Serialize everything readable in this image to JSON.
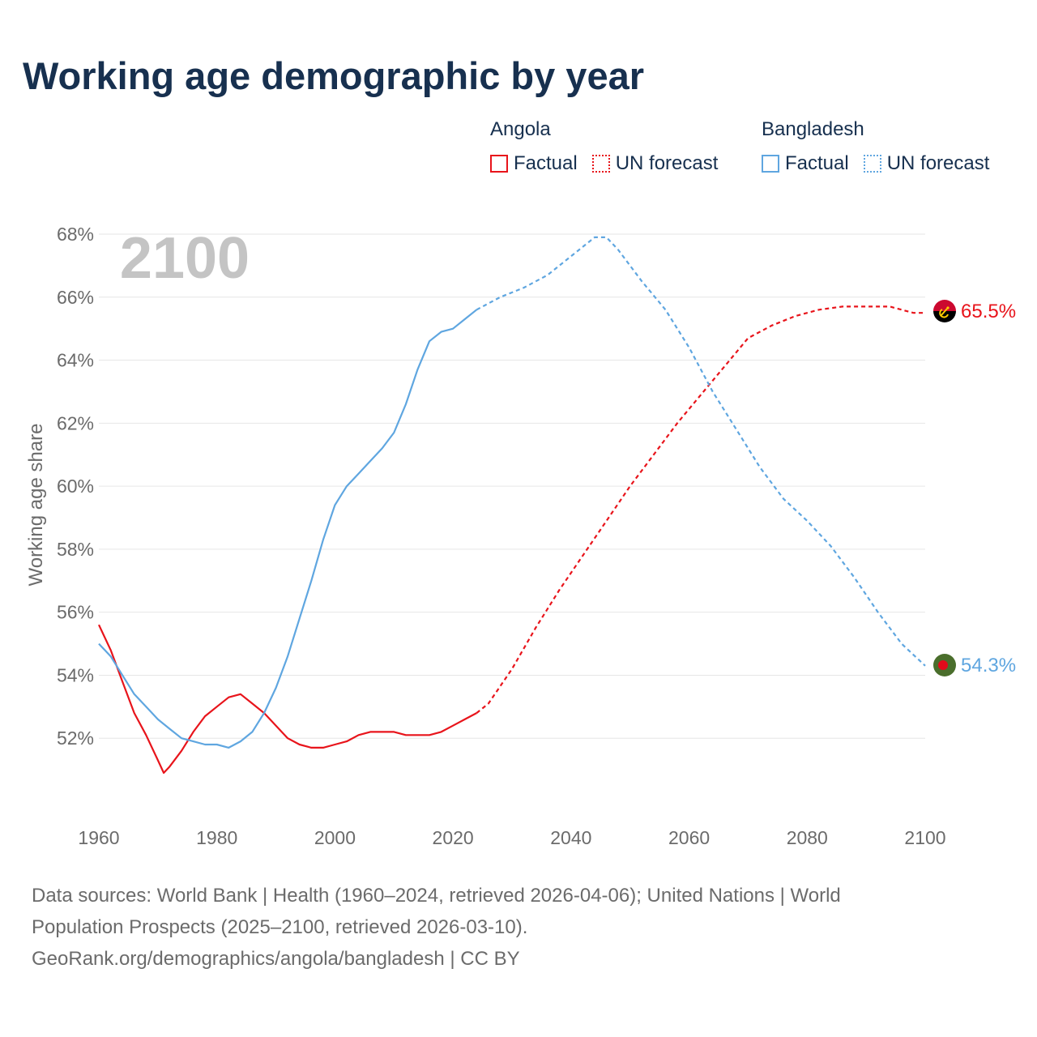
{
  "title": "Working age demographic by year",
  "legend": {
    "groups": [
      {
        "name": "Angola",
        "color": "#e8141b",
        "factual_label": "Factual",
        "forecast_label": "UN forecast"
      },
      {
        "name": "Bangladesh",
        "color": "#5fa6e0",
        "factual_label": "Factual",
        "forecast_label": "UN forecast"
      }
    ]
  },
  "year_label": "2100",
  "end_labels": {
    "angola": "65.5%",
    "bangladesh": "54.3%"
  },
  "flags": {
    "angola": "angola-flag-icon",
    "bangladesh": "bangladesh-flag-icon"
  },
  "source": {
    "line1": "Data sources: World Bank | Health (1960–2024, retrieved 2026-04-06); United Nations | World",
    "line2": "Population Prospects (2025–2100, retrieved 2026-03-10).",
    "line3": "GeoRank.org/demographics/angola/bangladesh | CC BY"
  },
  "chart_data": {
    "type": "line",
    "title": "Working age demographic by year",
    "xlabel": "",
    "ylabel": "Working age share",
    "xlim": [
      1960,
      2100
    ],
    "ylim": [
      50,
      68
    ],
    "xticks": [
      1960,
      1980,
      2000,
      2020,
      2040,
      2060,
      2080,
      2100
    ],
    "yticks": [
      52,
      54,
      56,
      58,
      60,
      62,
      64,
      66,
      68
    ],
    "ytick_labels": [
      "52%",
      "54%",
      "56%",
      "58%",
      "60%",
      "62%",
      "64%",
      "66%",
      "68%"
    ],
    "grid": true,
    "series": [
      {
        "name": "Angola",
        "color": "#e8141b",
        "factual": {
          "x": [
            1960,
            1962,
            1964,
            1966,
            1968,
            1970,
            1971,
            1972,
            1974,
            1976,
            1978,
            1980,
            1982,
            1984,
            1986,
            1988,
            1990,
            1992,
            1994,
            1996,
            1998,
            2000,
            2002,
            2004,
            2006,
            2008,
            2010,
            2012,
            2014,
            2016,
            2018,
            2020,
            2022,
            2024
          ],
          "y": [
            55.6,
            54.8,
            53.8,
            52.8,
            52.1,
            51.3,
            50.9,
            51.1,
            51.6,
            52.2,
            52.7,
            53.0,
            53.3,
            53.4,
            53.1,
            52.8,
            52.4,
            52.0,
            51.8,
            51.7,
            51.7,
            51.8,
            51.9,
            52.1,
            52.2,
            52.2,
            52.2,
            52.1,
            52.1,
            52.1,
            52.2,
            52.4,
            52.6,
            52.8
          ]
        },
        "forecast": {
          "x": [
            2024,
            2026,
            2030,
            2034,
            2038,
            2042,
            2046,
            2050,
            2054,
            2058,
            2062,
            2066,
            2070,
            2074,
            2078,
            2082,
            2086,
            2090,
            2094,
            2098,
            2100
          ],
          "y": [
            52.8,
            53.1,
            54.2,
            55.5,
            56.7,
            57.8,
            58.9,
            60.0,
            61.0,
            62.0,
            62.9,
            63.8,
            64.7,
            65.1,
            65.4,
            65.6,
            65.7,
            65.7,
            65.7,
            65.5,
            65.5
          ]
        }
      },
      {
        "name": "Bangladesh",
        "color": "#5fa6e0",
        "factual": {
          "x": [
            1960,
            1962,
            1964,
            1966,
            1968,
            1970,
            1972,
            1974,
            1976,
            1978,
            1980,
            1982,
            1984,
            1986,
            1988,
            1990,
            1992,
            1994,
            1996,
            1998,
            2000,
            2002,
            2004,
            2006,
            2008,
            2010,
            2012,
            2014,
            2016,
            2018,
            2020,
            2022,
            2024
          ],
          "y": [
            55.0,
            54.6,
            54.0,
            53.4,
            53.0,
            52.6,
            52.3,
            52.0,
            51.9,
            51.8,
            51.8,
            51.7,
            51.9,
            52.2,
            52.8,
            53.6,
            54.6,
            55.8,
            57.0,
            58.3,
            59.4,
            60.0,
            60.4,
            60.8,
            61.2,
            61.7,
            62.6,
            63.7,
            64.6,
            64.9,
            65.0,
            65.3,
            65.6
          ]
        },
        "forecast": {
          "x": [
            2024,
            2028,
            2032,
            2036,
            2040,
            2042,
            2044,
            2046,
            2048,
            2052,
            2056,
            2060,
            2064,
            2068,
            2072,
            2076,
            2080,
            2084,
            2088,
            2092,
            2096,
            2100
          ],
          "y": [
            65.6,
            66.0,
            66.3,
            66.7,
            67.3,
            67.6,
            67.9,
            67.9,
            67.5,
            66.5,
            65.6,
            64.4,
            63.0,
            61.8,
            60.6,
            59.6,
            58.9,
            58.1,
            57.1,
            56.0,
            55.0,
            54.3
          ]
        }
      }
    ]
  }
}
